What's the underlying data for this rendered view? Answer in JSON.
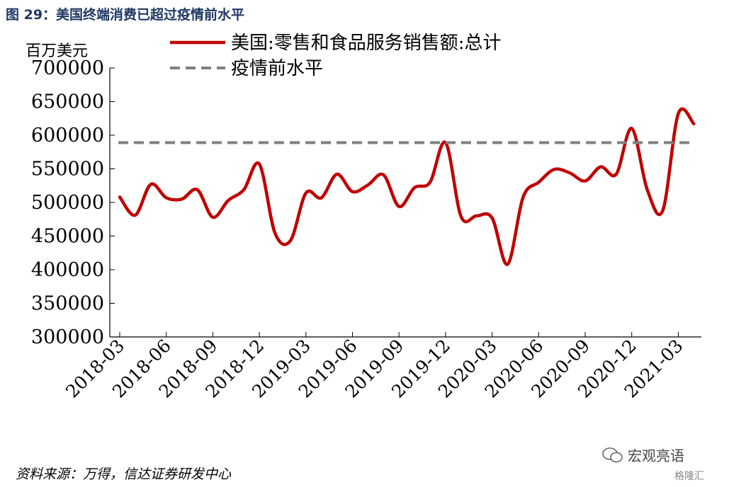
{
  "figure": {
    "title": "图 29：美国终端消费已超过疫情前水平",
    "unit": "百万美元",
    "source": "资料来源：万得，信达证券研发中心",
    "watermark": "宏观亮语",
    "badge": "格隆汇"
  },
  "chart_data": {
    "type": "line",
    "title": "图 29：美国终端消费已超过疫情前水平",
    "ylabel": "百万美元",
    "xlabel": "",
    "ylim": [
      300000,
      700000
    ],
    "yticks": [
      "700000",
      "650000",
      "600000",
      "550000",
      "500000",
      "450000",
      "400000",
      "350000",
      "300000"
    ],
    "xticks": [
      "2018-03",
      "2018-06",
      "2018-09",
      "2018-12",
      "2019-03",
      "2019-06",
      "2019-09",
      "2019-12",
      "2020-03",
      "2020-06",
      "2020-09",
      "2020-12",
      "2021-03"
    ],
    "grid": false,
    "legend_position": "top",
    "x": [
      "2018-03",
      "2018-04",
      "2018-05",
      "2018-06",
      "2018-07",
      "2018-08",
      "2018-09",
      "2018-10",
      "2018-11",
      "2018-12",
      "2019-01",
      "2019-02",
      "2019-03",
      "2019-04",
      "2019-05",
      "2019-06",
      "2019-07",
      "2019-08",
      "2019-09",
      "2019-10",
      "2019-11",
      "2019-12",
      "2020-01",
      "2020-02",
      "2020-03",
      "2020-04",
      "2020-05",
      "2020-06",
      "2020-07",
      "2020-08",
      "2020-09",
      "2020-10",
      "2020-11",
      "2020-12",
      "2021-01",
      "2021-02",
      "2021-03",
      "2021-04"
    ],
    "series": [
      {
        "name": "美国:零售和食品服务销售额:总计",
        "color": "#c00000",
        "style": "solid",
        "values": [
          508000,
          481000,
          527000,
          507000,
          505000,
          519000,
          478000,
          503000,
          519000,
          557000,
          455000,
          443000,
          514000,
          507000,
          542000,
          516000,
          526000,
          541000,
          494000,
          522000,
          530000,
          589000,
          479000,
          480000,
          477000,
          408000,
          508000,
          530000,
          549000,
          544000,
          532000,
          553000,
          542000,
          610000,
          519000,
          488000,
          632000,
          617000
        ]
      },
      {
        "name": "疫情前水平",
        "color": "#808080",
        "style": "dashed",
        "values": [
          589000,
          589000,
          589000,
          589000,
          589000,
          589000,
          589000,
          589000,
          589000,
          589000,
          589000,
          589000,
          589000,
          589000,
          589000,
          589000,
          589000,
          589000,
          589000,
          589000,
          589000,
          589000,
          589000,
          589000,
          589000,
          589000,
          589000,
          589000,
          589000,
          589000,
          589000,
          589000,
          589000,
          589000,
          589000,
          589000,
          589000,
          589000
        ]
      }
    ]
  }
}
